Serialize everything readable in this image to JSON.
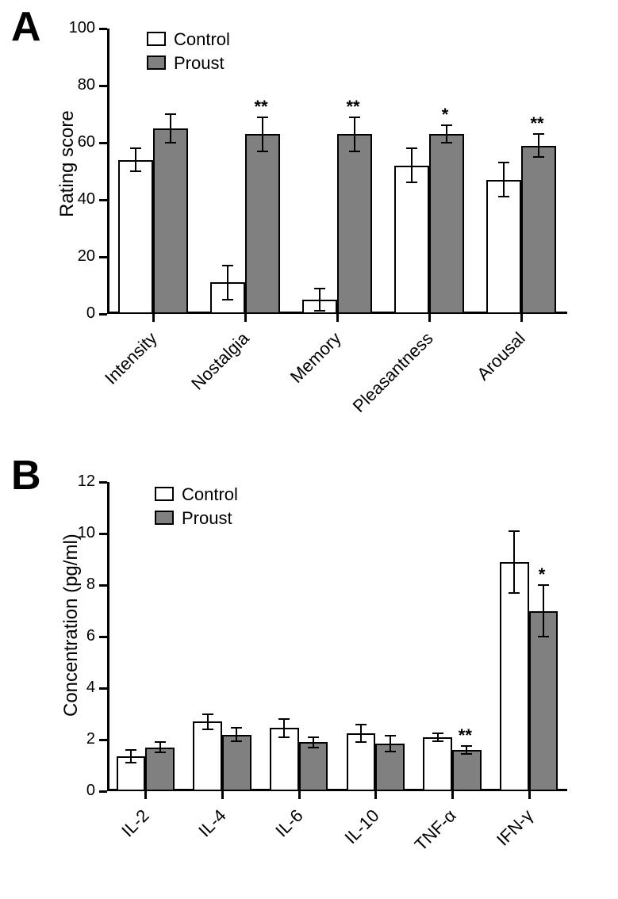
{
  "panelA": {
    "label": "A",
    "type": "bar",
    "y_title": "Rating score",
    "ylim": [
      0,
      100
    ],
    "ytick_step": 20,
    "yticks": [
      0,
      20,
      40,
      60,
      80,
      100
    ],
    "categories": [
      "Intensity",
      "Nostalgia",
      "Memory",
      "Pleasantness",
      "Arousal"
    ],
    "legend": [
      {
        "label": "Control",
        "fill": "#ffffff"
      },
      {
        "label": "Proust",
        "fill": "#808080"
      }
    ],
    "series": {
      "Control": {
        "fill": "#ffffff",
        "values": [
          54,
          11,
          5,
          52,
          47
        ],
        "errors": [
          4,
          6,
          4,
          6,
          6
        ]
      },
      "Proust": {
        "fill": "#808080",
        "values": [
          65,
          63,
          63,
          63,
          59
        ],
        "errors": [
          5,
          6,
          6,
          3,
          4
        ]
      }
    },
    "significance": [
      "",
      "**",
      "**",
      "*",
      "**"
    ],
    "axis_color": "#000000",
    "background_color": "#ffffff",
    "bar_width": 0.38,
    "label_fontsize": 22,
    "tick_fontsize": 20
  },
  "panelB": {
    "label": "B",
    "type": "bar",
    "y_title": "Concentration (pg/ml)",
    "ylim": [
      0,
      12
    ],
    "ytick_step": 2,
    "yticks": [
      0,
      2,
      4,
      6,
      8,
      10,
      12
    ],
    "categories": [
      "IL-2",
      "IL-4",
      "IL-6",
      "IL-10",
      "TNF-α",
      "IFN-γ"
    ],
    "legend": [
      {
        "label": "Control",
        "fill": "#ffffff"
      },
      {
        "label": "Proust",
        "fill": "#808080"
      }
    ],
    "series": {
      "Control": {
        "fill": "#ffffff",
        "values": [
          1.35,
          2.7,
          2.45,
          2.25,
          2.1,
          8.9
        ],
        "errors": [
          0.25,
          0.3,
          0.35,
          0.35,
          0.15,
          1.2
        ]
      },
      "Proust": {
        "fill": "#808080",
        "values": [
          1.7,
          2.2,
          1.9,
          1.85,
          1.6,
          7.0
        ],
        "errors": [
          0.2,
          0.25,
          0.2,
          0.3,
          0.15,
          1.0
        ]
      }
    },
    "significance": [
      "",
      "",
      "",
      "",
      "**",
      "*"
    ],
    "axis_color": "#000000",
    "background_color": "#ffffff",
    "bar_width": 0.38,
    "label_fontsize": 22,
    "tick_fontsize": 20
  }
}
